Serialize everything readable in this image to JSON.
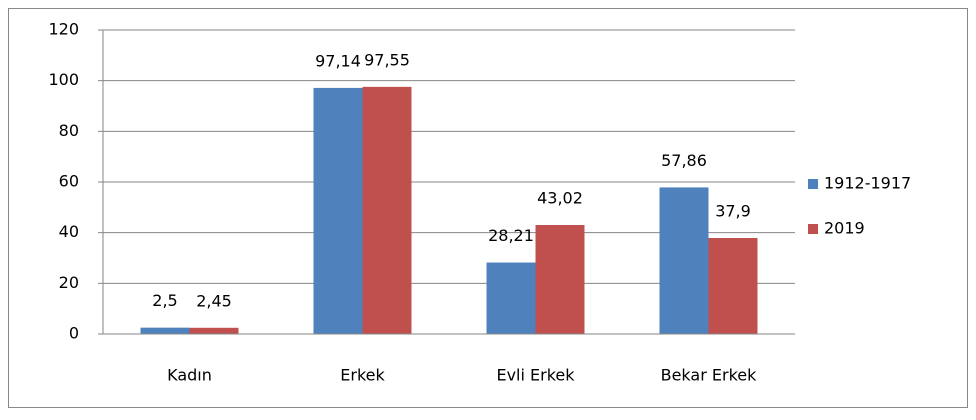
{
  "chart_data": {
    "type": "bar",
    "categories": [
      "Kadın",
      "Erkek",
      "Evli Erkek",
      "Bekar Erkek"
    ],
    "series": [
      {
        "name": "1912-1917",
        "color": "#4f81bd",
        "values": [
          2.5,
          97.14,
          28.21,
          57.86
        ],
        "value_labels": [
          "2,5",
          "97,14",
          "28,21",
          "57,86"
        ]
      },
      {
        "name": "2019",
        "color": "#c0504d",
        "values": [
          2.45,
          97.55,
          43.02,
          37.9
        ],
        "value_labels": [
          "2,45",
          "97,55",
          "43,02",
          "37,9"
        ]
      }
    ],
    "ylim": [
      0,
      120
    ],
    "yticks": [
      0,
      20,
      40,
      60,
      80,
      100,
      120
    ],
    "grid": true,
    "legend": "right"
  }
}
